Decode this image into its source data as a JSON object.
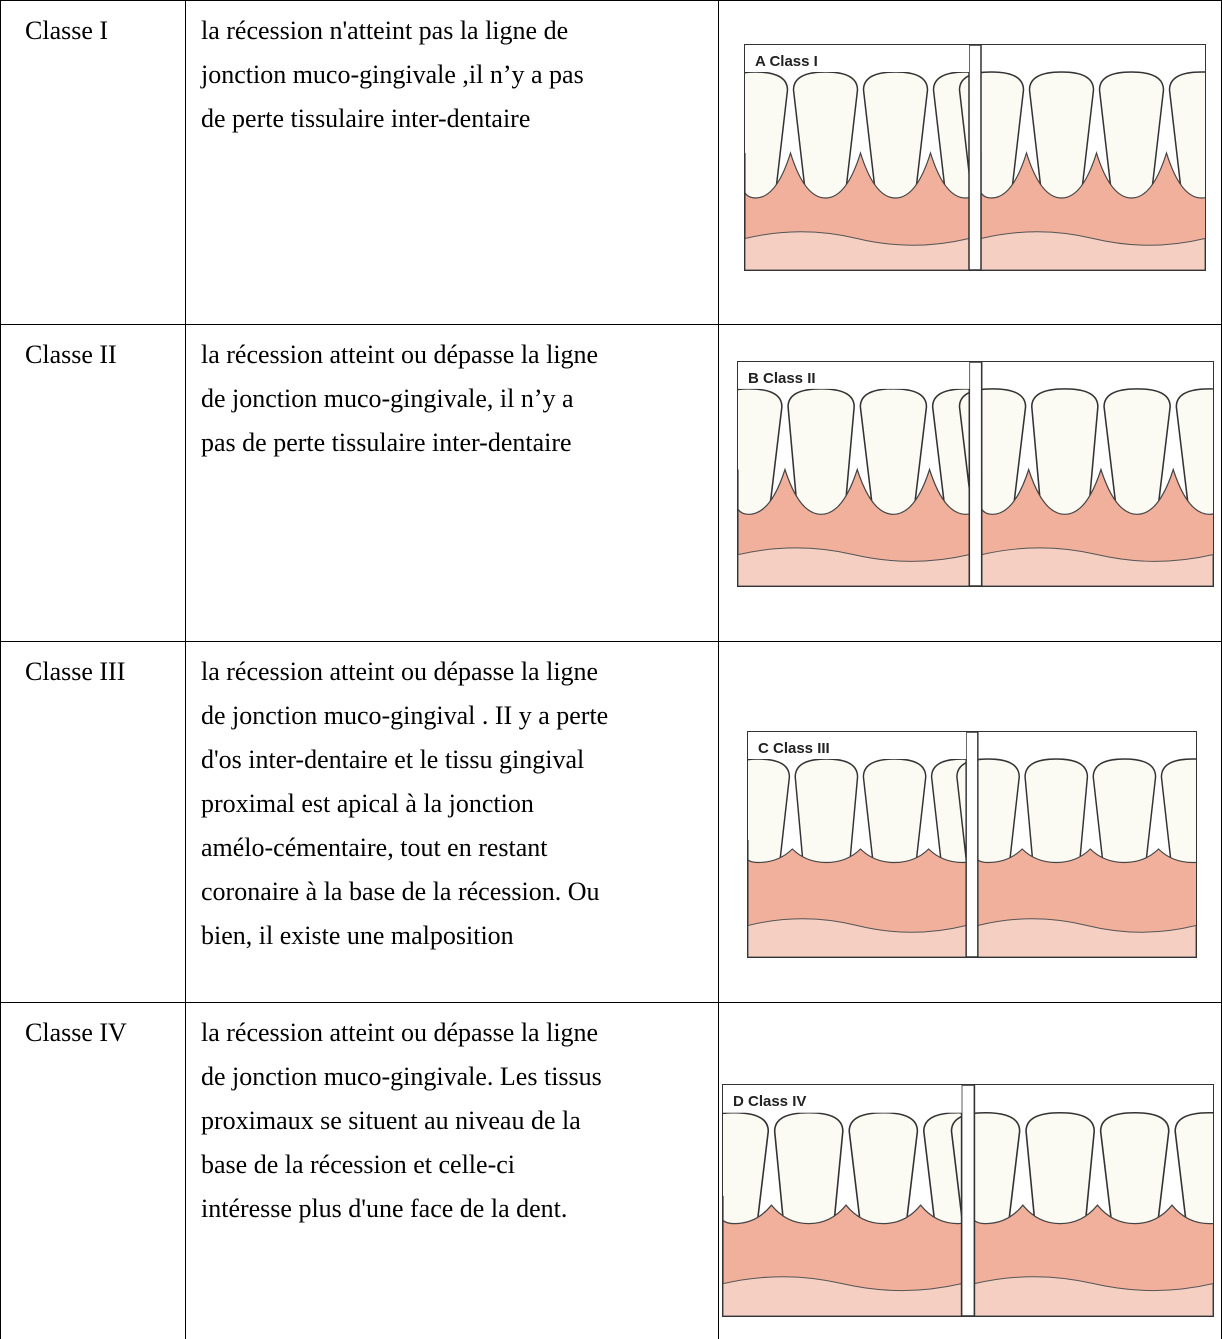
{
  "table": {
    "rows": [
      {
        "class": "Classe I",
        "description": [
          "la récession n'atteint pas la ligne de",
          "jonction muco-gingivale ,il n’y a pas",
          "de perte tissulaire inter-dentaire"
        ],
        "figure_label": "A Class I"
      },
      {
        "class": "Classe II",
        "description": [
          "la récession atteint ou dépasse la ligne",
          "de jonction muco-gingivale, il n’y a",
          "pas de perte tissulaire inter-dentaire"
        ],
        "figure_label": "B Class II"
      },
      {
        "class": "Classe III",
        "description": [
          "la récession atteint ou dépasse la ligne",
          "de jonction muco-gingival . II y a perte",
          "d'os inter-dentaire et le tissu gingival",
          "proximal est apical à la jonction",
          "amélo-cémentaire, tout en restant",
          "coronaire à la base de la récession. Ou",
          "bien, il existe une malposition"
        ],
        "figure_label": "C Class III"
      },
      {
        "class": "Classe IV",
        "description": [
          "la récession atteint ou dépasse la ligne",
          "de jonction muco-gingivale. Les tissus",
          "proximaux se situent au niveau de la",
          "base de la récession et celle-ci",
          "intéresse plus d'une face de la dent."
        ],
        "figure_label": "D Class IV"
      }
    ]
  }
}
